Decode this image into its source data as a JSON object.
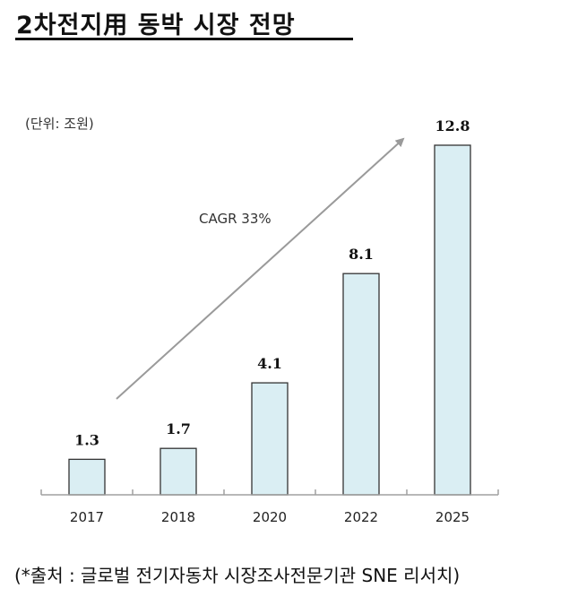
{
  "title": "2차전지用 동박 시장 전망",
  "unit_label": "(단위: 조원)",
  "annotation": "CAGR 33%",
  "source": "(*출처 : 글로벌 전기자동차 시장조사전문기관 SNE 리서치)",
  "colors": {
    "bar_fill": "#daeef3",
    "bar_stroke": "#333333",
    "axis": "#a0a0a0",
    "arrow": "#9a9a9a"
  },
  "chart_data": {
    "type": "bar",
    "title": "2차전지用 동박 시장 전망",
    "categories": [
      "2017",
      "2018",
      "2020",
      "2022",
      "2025"
    ],
    "values": [
      1.3,
      1.7,
      4.1,
      8.1,
      12.8
    ],
    "value_labels": [
      "1.3",
      "1.7",
      "4.1",
      "8.1",
      "12.8"
    ],
    "xlabel": "",
    "ylabel": "단위: 조원",
    "annotations": [
      "CAGR 33%"
    ],
    "grid": false,
    "legend": null
  }
}
